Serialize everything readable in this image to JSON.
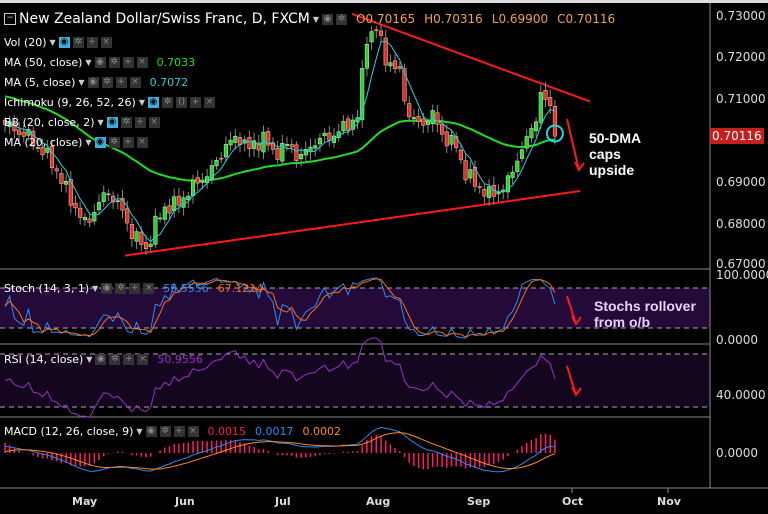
{
  "header": {
    "title": "New Zealand Dollar/Swiss Franc, D, FXCM",
    "ohlc": {
      "o": "O0.70165",
      "h": "H0.70316",
      "l": "L0.69900",
      "c": "C0.70116"
    }
  },
  "indicators": [
    {
      "label": "Vol (20)",
      "value": ""
    },
    {
      "label": "MA (50, close)",
      "value": "0.7033",
      "color": "#22dd22"
    },
    {
      "label": "MA (5, close)",
      "value": "0.7072",
      "color": "#22d3e0"
    },
    {
      "label": "Ichimoku (9, 26, 52, 26)",
      "value": ""
    },
    {
      "label": "BB (20, close, 2)",
      "value": ""
    },
    {
      "label": "MA (20, close)",
      "value": ""
    }
  ],
  "stoch": {
    "label": "Stoch (14, 3, 1)",
    "k": "55.5556",
    "d": "67.1214"
  },
  "rsi": {
    "label": "RSI (14, close)",
    "value": "50.9556"
  },
  "macd": {
    "label": "MACD (12, 26, close, 9)",
    "hist": "0.0015",
    "macd": "0.0017",
    "signal": "0.0002"
  },
  "price_axis": [
    "0.73000",
    "0.72000",
    "0.71000",
    "0.69000",
    "0.68000",
    "0.67000"
  ],
  "last_price": "0.70116",
  "stoch_axis": [
    "100.0000",
    "0.0000"
  ],
  "rsi_axis": [
    "40.0000"
  ],
  "macd_axis": [
    "0.0000"
  ],
  "x_axis": [
    "May",
    "Jun",
    "Jul",
    "Aug",
    "Sep",
    "Oct",
    "Nov"
  ],
  "annotations": {
    "ma": "50-DMA caps upside",
    "stoch": "Stochs rollover from o/b"
  },
  "colors": {
    "up": "#33cc33",
    "down": "#e03030",
    "trend": "#ff1a1a",
    "ma50": "#22dd22",
    "ma5": "#22d3e0",
    "stochK": "#2d8cf0",
    "stochD": "#ff6a1a",
    "rsi": "#9b30c8",
    "hist": "#ff1a6a"
  },
  "chart_data": {
    "type": "candlestick",
    "title": "New Zealand Dollar/Swiss Franc, D, FXCM",
    "ylim": [
      0.67,
      0.73
    ],
    "anchors_day_close": [
      [
        0,
        0.704
      ],
      [
        5,
        0.701
      ],
      [
        10,
        0.695
      ],
      [
        14,
        0.686
      ],
      [
        17,
        0.68
      ],
      [
        20,
        0.685
      ],
      [
        22,
        0.688
      ],
      [
        25,
        0.683
      ],
      [
        27,
        0.678
      ],
      [
        30,
        0.674
      ],
      [
        32,
        0.68
      ],
      [
        34,
        0.684
      ],
      [
        37,
        0.685
      ],
      [
        39,
        0.688
      ],
      [
        41,
        0.69
      ],
      [
        44,
        0.693
      ],
      [
        47,
        0.699
      ],
      [
        50,
        0.701
      ],
      [
        52,
        0.698
      ],
      [
        55,
        0.701
      ],
      [
        57,
        0.697
      ],
      [
        60,
        0.699
      ],
      [
        63,
        0.696
      ],
      [
        66,
        0.7
      ],
      [
        69,
        0.701
      ],
      [
        72,
        0.703
      ],
      [
        75,
        0.706
      ],
      [
        77,
        0.725
      ],
      [
        79,
        0.727
      ],
      [
        81,
        0.72
      ],
      [
        84,
        0.716
      ],
      [
        86,
        0.706
      ],
      [
        88,
        0.704
      ],
      [
        91,
        0.706
      ],
      [
        94,
        0.7
      ],
      [
        96,
        0.699
      ],
      [
        98,
        0.692
      ],
      [
        100,
        0.69
      ],
      [
        103,
        0.687
      ],
      [
        105,
        0.688
      ],
      [
        107,
        0.69
      ],
      [
        109,
        0.696
      ],
      [
        111,
        0.7
      ],
      [
        113,
        0.706
      ],
      [
        114,
        0.711
      ],
      [
        116,
        0.708
      ],
      [
        117,
        0.7012
      ]
    ],
    "trendlines": [
      {
        "name": "support",
        "from": [
          "mid-May",
          0.6725
        ],
        "to": [
          "early Oct",
          0.688
        ]
      },
      {
        "name": "resistance",
        "from": [
          "late Jul",
          0.7305
        ],
        "to": [
          "early Oct",
          0.7095
        ]
      }
    ]
  }
}
